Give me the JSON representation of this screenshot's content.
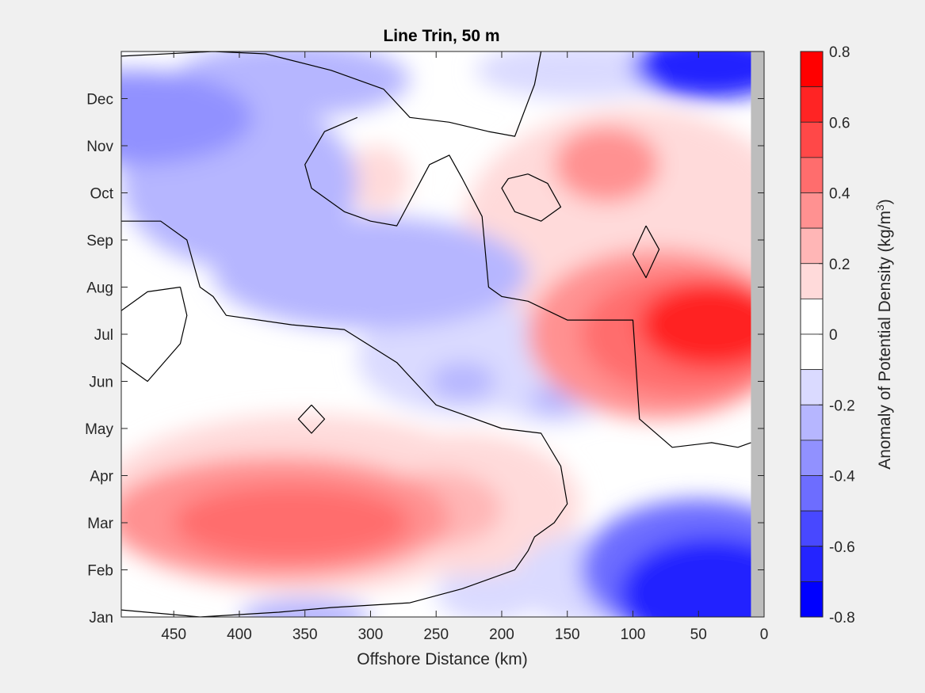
{
  "chart_data": {
    "type": "heatmap",
    "title": "Line Trin, 50 m",
    "xlabel": "Offshore Distance (km)",
    "ylabel": "",
    "x_reversed": true,
    "xlim": [
      0,
      490
    ],
    "ylim": [
      1,
      13
    ],
    "x_ticks": [
      450,
      400,
      350,
      300,
      250,
      200,
      150,
      100,
      50,
      0
    ],
    "y_ticks": [
      {
        "value": 1,
        "label": "Jan"
      },
      {
        "value": 2,
        "label": "Feb"
      },
      {
        "value": 3,
        "label": "Mar"
      },
      {
        "value": 4,
        "label": "Apr"
      },
      {
        "value": 5,
        "label": "May"
      },
      {
        "value": 6,
        "label": "Jun"
      },
      {
        "value": 7,
        "label": "Jul"
      },
      {
        "value": 8,
        "label": "Aug"
      },
      {
        "value": 9,
        "label": "Sep"
      },
      {
        "value": 10,
        "label": "Oct"
      },
      {
        "value": 11,
        "label": "Nov"
      },
      {
        "value": 12,
        "label": "Dec"
      }
    ],
    "colorbar": {
      "label_main": "Anomaly of Potential Density (kg/m",
      "label_sup": "3",
      "label_end": ")",
      "range": [
        -0.8,
        0.8
      ],
      "tick_values": [
        0.8,
        0.6,
        0.4,
        0.2,
        0,
        -0.2,
        -0.4,
        -0.6,
        -0.8
      ],
      "tick_labels": [
        "0.8",
        "0.6",
        "0.4",
        "0.2",
        "0",
        "-0.2",
        "-0.4",
        "-0.6",
        "-0.8"
      ],
      "levels": [
        {
          "from": 0.7,
          "to": 0.8,
          "color": "#ff0000"
        },
        {
          "from": 0.6,
          "to": 0.7,
          "color": "#ff2424"
        },
        {
          "from": 0.5,
          "to": 0.6,
          "color": "#ff4848"
        },
        {
          "from": 0.4,
          "to": 0.5,
          "color": "#ff6d6d"
        },
        {
          "from": 0.3,
          "to": 0.4,
          "color": "#ff9191"
        },
        {
          "from": 0.2,
          "to": 0.3,
          "color": "#ffb6b6"
        },
        {
          "from": 0.1,
          "to": 0.2,
          "color": "#ffdada"
        },
        {
          "from": 0.0,
          "to": 0.1,
          "color": "#ffffff"
        },
        {
          "from": -0.1,
          "to": 0.0,
          "color": "#ffffff"
        },
        {
          "from": -0.2,
          "to": -0.1,
          "color": "#dadaff"
        },
        {
          "from": -0.3,
          "to": -0.2,
          "color": "#b6b6ff"
        },
        {
          "from": -0.4,
          "to": -0.3,
          "color": "#9191ff"
        },
        {
          "from": -0.5,
          "to": -0.4,
          "color": "#6d6dff"
        },
        {
          "from": -0.6,
          "to": -0.5,
          "color": "#4848ff"
        },
        {
          "from": -0.7,
          "to": -0.6,
          "color": "#2424ff"
        },
        {
          "from": -0.8,
          "to": -0.7,
          "color": "#0000ff"
        }
      ]
    },
    "no_data_region": {
      "x_from": 0,
      "x_to": 10,
      "color": "#bdbdbd"
    },
    "zero_contour_color": "#000000",
    "anomaly_blobs": [
      {
        "x": 40,
        "y": 12.7,
        "rx": 60,
        "ry": 0.7,
        "value": -0.7
      },
      {
        "x": 140,
        "y": 12.6,
        "rx": 80,
        "ry": 0.6,
        "value": -0.15
      },
      {
        "x": 40,
        "y": 1.5,
        "rx": 70,
        "ry": 1.2,
        "value": -0.7
      },
      {
        "x": 50,
        "y": 2.0,
        "rx": 90,
        "ry": 1.5,
        "value": -0.45
      },
      {
        "x": 130,
        "y": 1.8,
        "rx": 60,
        "ry": 1.0,
        "value": -0.2
      },
      {
        "x": 210,
        "y": 1.5,
        "rx": 40,
        "ry": 0.6,
        "value": -0.15
      },
      {
        "x": 350,
        "y": 1.0,
        "rx": 50,
        "ry": 0.4,
        "value": -0.25
      },
      {
        "x": 480,
        "y": 11.6,
        "rx": 90,
        "ry": 1.0,
        "value": -0.35
      },
      {
        "x": 360,
        "y": 12.4,
        "rx": 90,
        "ry": 0.8,
        "value": -0.3
      },
      {
        "x": 400,
        "y": 10.2,
        "rx": 90,
        "ry": 1.8,
        "value": -0.3
      },
      {
        "x": 300,
        "y": 8.3,
        "rx": 120,
        "ry": 1.2,
        "value": -0.3
      },
      {
        "x": 230,
        "y": 6.5,
        "rx": 80,
        "ry": 1.2,
        "value": -0.2
      },
      {
        "x": 160,
        "y": 5.9,
        "rx": 50,
        "ry": 0.8,
        "value": -0.2
      },
      {
        "x": 230,
        "y": 6.0,
        "rx": 25,
        "ry": 0.4,
        "value": -0.3
      },
      {
        "x": 160,
        "y": 5.6,
        "rx": 18,
        "ry": 0.3,
        "value": -0.3
      },
      {
        "x": 40,
        "y": 7.2,
        "rx": 55,
        "ry": 0.9,
        "value": 0.65
      },
      {
        "x": 60,
        "y": 7.0,
        "rx": 80,
        "ry": 1.3,
        "value": 0.45
      },
      {
        "x": 80,
        "y": 7.0,
        "rx": 100,
        "ry": 1.8,
        "value": 0.3
      },
      {
        "x": 100,
        "y": 9.2,
        "rx": 130,
        "ry": 2.6,
        "value": 0.15
      },
      {
        "x": 120,
        "y": 10.6,
        "rx": 40,
        "ry": 0.8,
        "value": 0.35
      },
      {
        "x": 360,
        "y": 3.0,
        "rx": 90,
        "ry": 0.8,
        "value": 0.42
      },
      {
        "x": 370,
        "y": 3.1,
        "rx": 130,
        "ry": 1.3,
        "value": 0.3
      },
      {
        "x": 350,
        "y": 3.4,
        "rx": 160,
        "ry": 1.9,
        "value": 0.15
      },
      {
        "x": 250,
        "y": 3.3,
        "rx": 50,
        "ry": 0.8,
        "value": 0.25
      },
      {
        "x": 230,
        "y": 3.4,
        "rx": 90,
        "ry": 1.5,
        "value": 0.15
      },
      {
        "x": 355,
        "y": 10.4,
        "rx": 25,
        "ry": 0.6,
        "value": 0.15
      },
      {
        "x": 295,
        "y": 10.3,
        "rx": 25,
        "ry": 0.7,
        "value": 0.15
      }
    ],
    "zero_contours": [
      [
        [
          490,
          12.9
        ],
        [
          420,
          13
        ],
        [
          380,
          12.95
        ],
        [
          330,
          12.6
        ],
        [
          290,
          12.2
        ],
        [
          270,
          11.6
        ],
        [
          240,
          11.5
        ],
        [
          210,
          11.3
        ],
        [
          190,
          11.2
        ],
        [
          175,
          12.3
        ],
        [
          170,
          13
        ]
      ],
      [
        [
          310,
          11.6
        ],
        [
          335,
          11.3
        ],
        [
          350,
          10.6
        ],
        [
          345,
          10.1
        ],
        [
          320,
          9.6
        ],
        [
          300,
          9.4
        ],
        [
          280,
          9.3
        ],
        [
          255,
          10.6
        ],
        [
          240,
          10.8
        ],
        [
          230,
          10.3
        ],
        [
          215,
          9.5
        ],
        [
          210,
          8.0
        ],
        [
          200,
          7.8
        ],
        [
          180,
          7.7
        ],
        [
          150,
          7.3
        ],
        [
          100,
          7.3
        ],
        [
          95,
          5.2
        ],
        [
          70,
          4.6
        ],
        [
          40,
          4.7
        ],
        [
          20,
          4.6
        ],
        [
          10,
          4.7
        ]
      ],
      [
        [
          490,
          9.4
        ],
        [
          460,
          9.4
        ],
        [
          440,
          9.0
        ],
        [
          430,
          8.0
        ],
        [
          420,
          7.8
        ],
        [
          410,
          7.4
        ],
        [
          360,
          7.2
        ],
        [
          320,
          7.1
        ],
        [
          280,
          6.4
        ],
        [
          250,
          5.5
        ],
        [
          230,
          5.3
        ],
        [
          200,
          5.0
        ],
        [
          170,
          4.9
        ],
        [
          155,
          4.2
        ],
        [
          150,
          3.4
        ],
        [
          160,
          3.0
        ],
        [
          175,
          2.7
        ],
        [
          180,
          2.4
        ],
        [
          190,
          2.0
        ],
        [
          230,
          1.6
        ],
        [
          270,
          1.3
        ],
        [
          330,
          1.2
        ],
        [
          370,
          1.1
        ],
        [
          430,
          1.0
        ],
        [
          490,
          1.15
        ]
      ],
      [
        [
          445,
          8.0
        ],
        [
          470,
          7.9
        ],
        [
          490,
          7.5
        ],
        [
          490,
          6.4
        ],
        [
          470,
          6.0
        ],
        [
          445,
          6.8
        ],
        [
          440,
          7.4
        ],
        [
          445,
          8.0
        ]
      ],
      [
        [
          180,
          10.4
        ],
        [
          165,
          10.2
        ],
        [
          155,
          9.7
        ],
        [
          170,
          9.4
        ],
        [
          190,
          9.6
        ],
        [
          200,
          10.1
        ],
        [
          195,
          10.3
        ],
        [
          180,
          10.4
        ]
      ],
      [
        [
          90,
          9.3
        ],
        [
          80,
          8.8
        ],
        [
          90,
          8.2
        ],
        [
          100,
          8.7
        ],
        [
          90,
          9.3
        ]
      ],
      [
        [
          345,
          5.5
        ],
        [
          355,
          5.2
        ],
        [
          345,
          4.9
        ],
        [
          335,
          5.2
        ],
        [
          345,
          5.5
        ]
      ]
    ]
  }
}
